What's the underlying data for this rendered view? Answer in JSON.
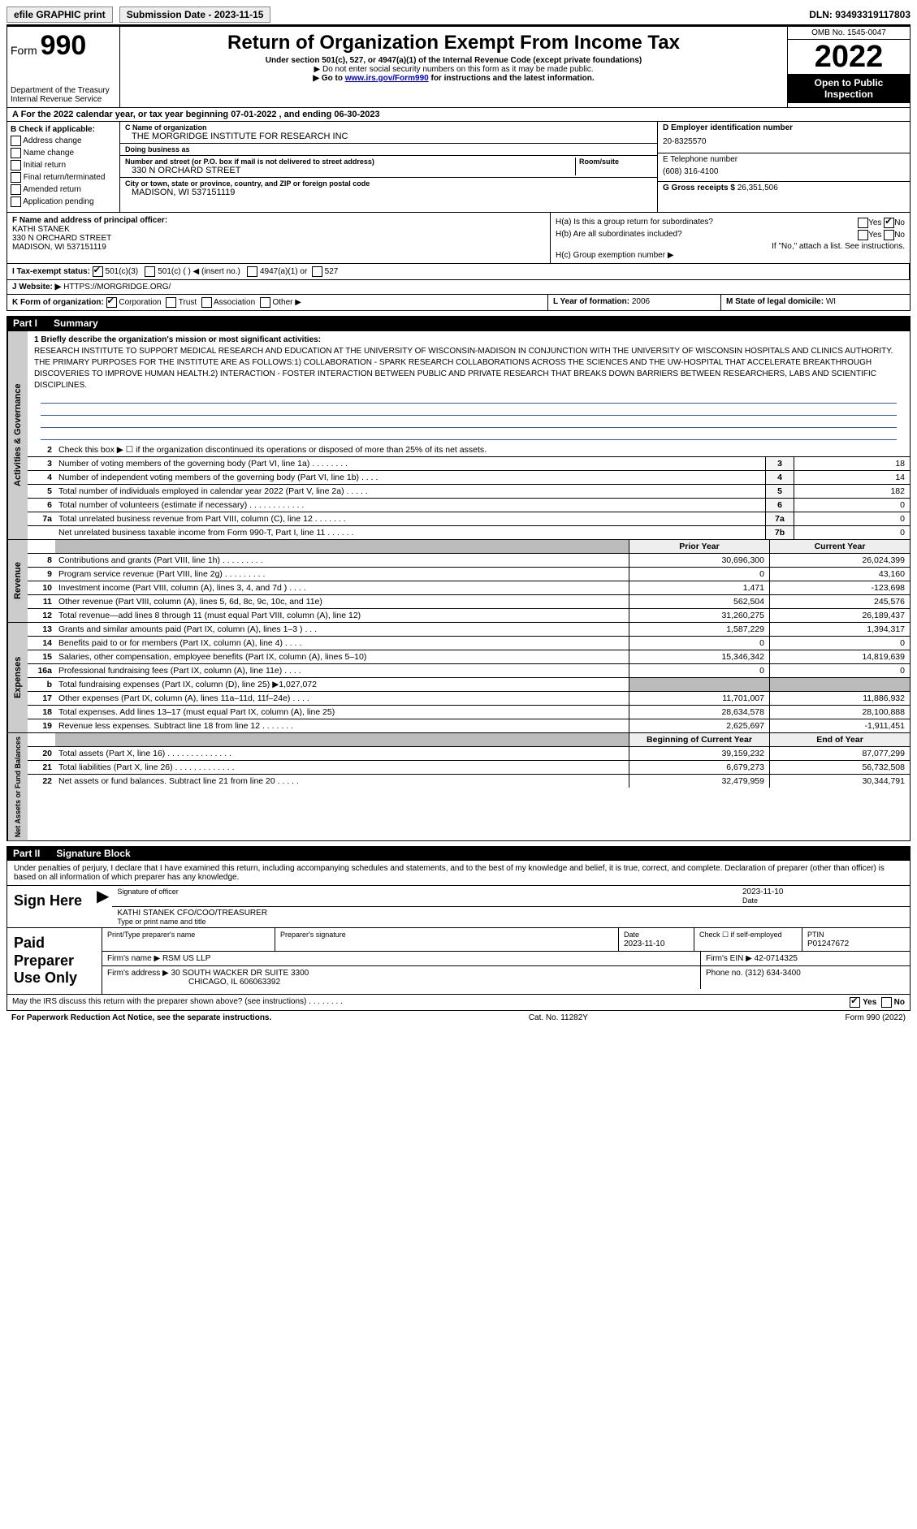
{
  "topbar": {
    "efile": "efile GRAPHIC print",
    "submission": "Submission Date - 2023-11-15",
    "dln": "DLN: 93493319117803"
  },
  "header": {
    "form_prefix": "Form",
    "form_number": "990",
    "dept": "Department of the Treasury\nInternal Revenue Service",
    "title": "Return of Organization Exempt From Income Tax",
    "subtitle": "Under section 501(c), 527, or 4947(a)(1) of the Internal Revenue Code (except private foundations)",
    "note1": "▶ Do not enter social security numbers on this form as it may be made public.",
    "note2_pre": "▶ Go to ",
    "note2_link": "www.irs.gov/Form990",
    "note2_post": " for instructions and the latest information.",
    "omb": "OMB No. 1545-0047",
    "year": "2022",
    "open": "Open to Public Inspection"
  },
  "rowA": "A For the 2022 calendar year, or tax year beginning 07-01-2022 , and ending 06-30-2023",
  "colB": {
    "label": "B Check if applicable:",
    "opts": [
      "Address change",
      "Name change",
      "Initial return",
      "Final return/terminated",
      "Amended return",
      "Application pending"
    ]
  },
  "colC": {
    "name_label": "C Name of organization",
    "name": "THE MORGRIDGE INSTITUTE FOR RESEARCH INC",
    "dba_label": "Doing business as",
    "dba": "",
    "street_label": "Number and street (or P.O. box if mail is not delivered to street address)",
    "room_label": "Room/suite",
    "street": "330 N ORCHARD STREET",
    "city_label": "City or town, state or province, country, and ZIP or foreign postal code",
    "city": "MADISON, WI  537151119"
  },
  "colD": {
    "ein_label": "D Employer identification number",
    "ein": "20-8325570",
    "phone_label": "E Telephone number",
    "phone": "(608) 316-4100",
    "gross_label": "G Gross receipts $",
    "gross": "26,351,506"
  },
  "rowF": {
    "label": "F  Name and address of principal officer:",
    "name": "KATHI STANEK",
    "addr1": "330 N ORCHARD STREET",
    "addr2": "MADISON, WI  537151119"
  },
  "rowH": {
    "a": "H(a)  Is this a group return for subordinates?",
    "a_yes": "Yes",
    "a_no": "No",
    "b": "H(b)  Are all subordinates included?",
    "b_yes": "Yes",
    "b_no": "No",
    "b_note": "If \"No,\" attach a list. See instructions.",
    "c": "H(c)  Group exemption number ▶"
  },
  "rowI": {
    "label": "I  Tax-exempt status:",
    "c3": "501(c)(3)",
    "c_other": "501(c) (   ) ◀ (insert no.)",
    "a1": "4947(a)(1) or",
    "s527": "527"
  },
  "rowJ": {
    "label": "J  Website: ▶",
    "url": "HTTPS://MORGRIDGE.ORG/"
  },
  "rowK": {
    "label": "K Form of organization:",
    "corp": "Corporation",
    "trust": "Trust",
    "assoc": "Association",
    "other": "Other ▶",
    "l_label": "L Year of formation:",
    "l_val": "2006",
    "m_label": "M State of legal domicile:",
    "m_val": "WI"
  },
  "part1": {
    "label": "Part I",
    "title": "Summary"
  },
  "mission": {
    "label": "1   Briefly describe the organization's mission or most significant activities:",
    "text": "RESEARCH INSTITUTE TO SUPPORT MEDICAL RESEARCH AND EDUCATION AT THE UNIVERSITY OF WISCONSIN-MADISON IN CONJUNCTION WITH THE UNIVERSITY OF WISCONSIN HOSPITALS AND CLINICS AUTHORITY. THE PRIMARY PURPOSES FOR THE INSTITUTE ARE AS FOLLOWS:1) COLLABORATION - SPARK RESEARCH COLLABORATIONS ACROSS THE SCIENCES AND THE UW-HOSPITAL THAT ACCELERATE BREAKTHROUGH DISCOVERIES TO IMPROVE HUMAN HEALTH.2) INTERACTION - FOSTER INTERACTION BETWEEN PUBLIC AND PRIVATE RESEARCH THAT BREAKS DOWN BARRIERS BETWEEN RESEARCHERS, LABS AND SCIENTIFIC DISCIPLINES."
  },
  "gov_rows": [
    {
      "n": "2",
      "d": "Check this box ▶ ☐ if the organization discontinued its operations or disposed of more than 25% of its net assets."
    },
    {
      "n": "3",
      "d": "Number of voting members of the governing body (Part VI, line 1a)  .    .    .    .    .    .    .    .",
      "box": "3",
      "val": "18"
    },
    {
      "n": "4",
      "d": "Number of independent voting members of the governing body (Part VI, line 1b)  .    .    .    .",
      "box": "4",
      "val": "14"
    },
    {
      "n": "5",
      "d": "Total number of individuals employed in calendar year 2022 (Part V, line 2a)  .    .    .    .    .",
      "box": "5",
      "val": "182"
    },
    {
      "n": "6",
      "d": "Total number of volunteers (estimate if necessary)  .    .    .    .    .    .    .    .    .    .    .    .",
      "box": "6",
      "val": "0"
    },
    {
      "n": "7a",
      "d": "Total unrelated business revenue from Part VIII, column (C), line 12  .    .    .    .    .    .    .",
      "box": "7a",
      "val": "0"
    },
    {
      "n": "",
      "d": "Net unrelated business taxable income from Form 990-T, Part I, line 11  .    .    .    .    .    .",
      "box": "7b",
      "val": "0"
    }
  ],
  "rev": {
    "side": "Revenue",
    "header_prior": "Prior Year",
    "header_curr": "Current Year",
    "rows": [
      {
        "n": "8",
        "d": "Contributions and grants (Part VIII, line 1h)  .    .    .    .    .    .    .    .    .",
        "p": "30,696,300",
        "c": "26,024,399"
      },
      {
        "n": "9",
        "d": "Program service revenue (Part VIII, line 2g)  .    .    .    .    .    .    .    .    .",
        "p": "0",
        "c": "43,160"
      },
      {
        "n": "10",
        "d": "Investment income (Part VIII, column (A), lines 3, 4, and 7d )  .    .    .    .",
        "p": "1,471",
        "c": "-123,698"
      },
      {
        "n": "11",
        "d": "Other revenue (Part VIII, column (A), lines 5, 6d, 8c, 9c, 10c, and 11e)",
        "p": "562,504",
        "c": "245,576"
      },
      {
        "n": "12",
        "d": "Total revenue—add lines 8 through 11 (must equal Part VIII, column (A), line 12)",
        "p": "31,260,275",
        "c": "26,189,437"
      }
    ]
  },
  "exp": {
    "side": "Expenses",
    "rows": [
      {
        "n": "13",
        "d": "Grants and similar amounts paid (Part IX, column (A), lines 1–3 )  .    .    .",
        "p": "1,587,229",
        "c": "1,394,317"
      },
      {
        "n": "14",
        "d": "Benefits paid to or for members (Part IX, column (A), line 4)  .    .    .    .",
        "p": "0",
        "c": "0"
      },
      {
        "n": "15",
        "d": "Salaries, other compensation, employee benefits (Part IX, column (A), lines 5–10)",
        "p": "15,346,342",
        "c": "14,819,639"
      },
      {
        "n": "16a",
        "d": "Professional fundraising fees (Part IX, column (A), line 11e)  .    .    .    .",
        "p": "0",
        "c": "0"
      },
      {
        "n": "b",
        "d": "Total fundraising expenses (Part IX, column (D), line 25) ▶1,027,072",
        "p": "",
        "c": "",
        "grey": true
      },
      {
        "n": "17",
        "d": "Other expenses (Part IX, column (A), lines 11a–11d, 11f–24e)  .    .    .    .",
        "p": "11,701,007",
        "c": "11,886,932"
      },
      {
        "n": "18",
        "d": "Total expenses. Add lines 13–17 (must equal Part IX, column (A), line 25)",
        "p": "28,634,578",
        "c": "28,100,888"
      },
      {
        "n": "19",
        "d": "Revenue less expenses. Subtract line 18 from line 12  .    .    .    .    .    .    .",
        "p": "2,625,697",
        "c": "-1,911,451"
      }
    ]
  },
  "net": {
    "side": "Net Assets or Fund Balances",
    "header_prior": "Beginning of Current Year",
    "header_curr": "End of Year",
    "rows": [
      {
        "n": "20",
        "d": "Total assets (Part X, line 16)  .    .    .    .    .    .    .    .    .    .    .    .    .    .",
        "p": "39,159,232",
        "c": "87,077,299"
      },
      {
        "n": "21",
        "d": "Total liabilities (Part X, line 26)  .    .    .    .    .    .    .    .    .    .    .    .    .",
        "p": "6,679,273",
        "c": "56,732,508"
      },
      {
        "n": "22",
        "d": "Net assets or fund balances. Subtract line 21 from line 20  .    .    .    .    .",
        "p": "32,479,959",
        "c": "30,344,791"
      }
    ]
  },
  "part2": {
    "label": "Part II",
    "title": "Signature Block"
  },
  "sig": {
    "declaration": "Under penalties of perjury, I declare that I have examined this return, including accompanying schedules and statements, and to the best of my knowledge and belief, it is true, correct, and complete. Declaration of preparer (other than officer) is based on all information of which preparer has any knowledge.",
    "sign_here": "Sign Here",
    "sig_officer": "Signature of officer",
    "date_label": "Date",
    "date": "2023-11-10",
    "name_title": "KATHI STANEK CFO/COO/TREASURER",
    "type_label": "Type or print name and title"
  },
  "paid": {
    "label": "Paid Preparer Use Only",
    "print_label": "Print/Type preparer's name",
    "sig_label": "Preparer's signature",
    "date_label": "Date",
    "date": "2023-11-10",
    "check_label": "Check ☐ if self-employed",
    "ptin_label": "PTIN",
    "ptin": "P01247672",
    "firm_name_label": "Firm's name    ▶",
    "firm_name": "RSM US LLP",
    "firm_ein_label": "Firm's EIN ▶",
    "firm_ein": "42-0714325",
    "firm_addr_label": "Firm's address ▶",
    "firm_addr": "30 SOUTH WACKER DR SUITE 3300",
    "firm_city": "CHICAGO, IL  606063392",
    "phone_label": "Phone no.",
    "phone": "(312) 634-3400"
  },
  "footer": {
    "discuss": "May the IRS discuss this return with the preparer shown above? (see instructions)  .    .    .    .    .    .    .    .",
    "yes": "Yes",
    "no": "No",
    "paperwork": "For Paperwork Reduction Act Notice, see the separate instructions.",
    "cat": "Cat. No. 11282Y",
    "form": "Form 990 (2022)"
  }
}
